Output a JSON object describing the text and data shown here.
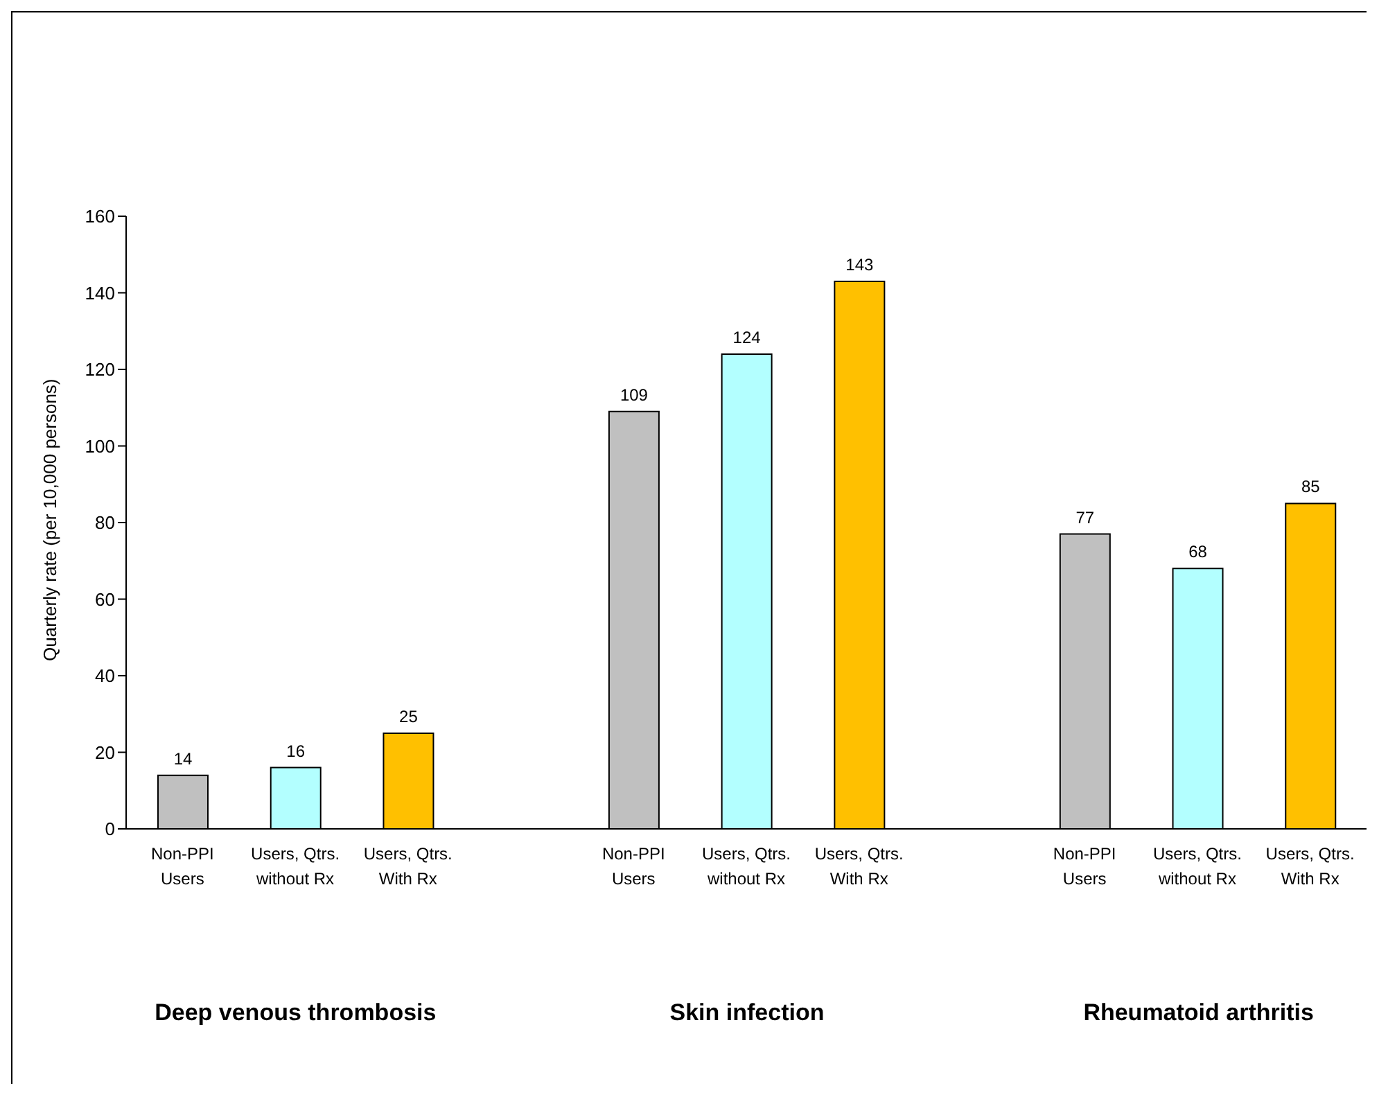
{
  "chart_data": {
    "type": "bar",
    "ylabel": "Quarterly rate (per 10,000 persons)",
    "categories": [
      "Non-PPI Users",
      "Users, Qtrs. without Rx",
      "Users, Qtrs. With Rx",
      null,
      "Non-PPI Users",
      "Users, Qtrs. without Rx",
      "Users, Qtrs. With Rx",
      null,
      "Non-PPI Users",
      "Users, Qtrs. without Rx",
      "Users, Qtrs. With Rx"
    ],
    "values": [
      14,
      16,
      25,
      null,
      109,
      124,
      143,
      null,
      77,
      68,
      85
    ],
    "colors": [
      "#c0c0c0",
      "#b3ffff",
      "#ffc000",
      null,
      "#c0c0c0",
      "#b3ffff",
      "#ffc000",
      null,
      "#c0c0c0",
      "#b3ffff",
      "#ffc000"
    ],
    "ylim": [
      0,
      160
    ],
    "yticks": [
      0,
      20,
      40,
      60,
      80,
      100,
      120,
      140,
      160
    ],
    "data_labels": true,
    "annotations": [
      "Deep venous thrombosis",
      "Skin infection",
      "Rheumatoid arthritis"
    ]
  }
}
